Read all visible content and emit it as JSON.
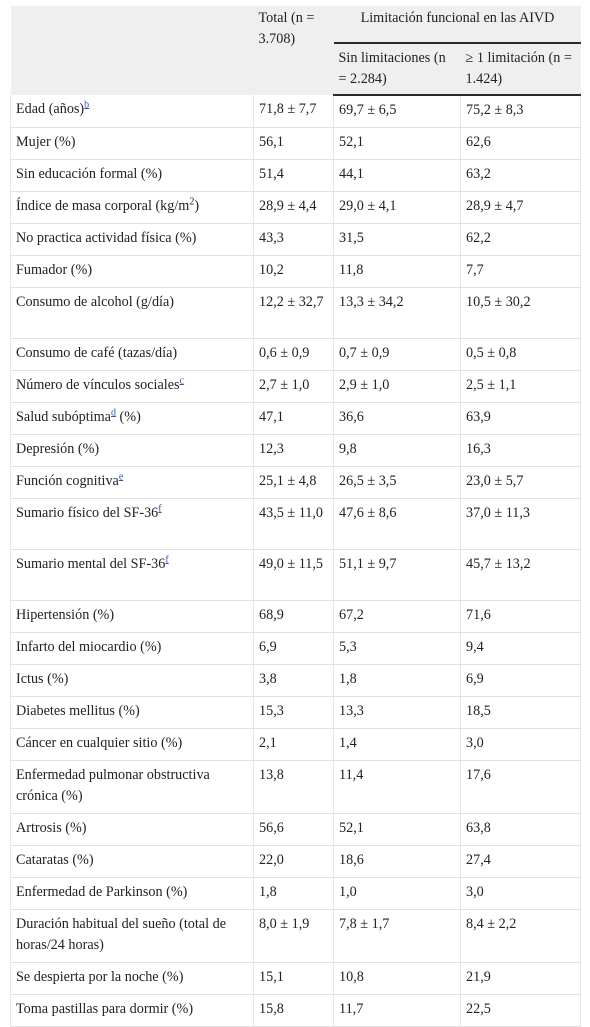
{
  "header": {
    "total": "Total (n = 3.708)",
    "group": "Limitación funcional en las AIVD",
    "col_none": "Sin limitaciones (n = 2.284)",
    "col_one": "≥ 1 limitación (n = 1.424)"
  },
  "rows": [
    {
      "label": "Edad (años)",
      "sup": "b",
      "suffix": "",
      "total": "71,8 ± 7,7",
      "none": "69,7 ± 6,5",
      "one": "75,2 ± 8,3"
    },
    {
      "label": "Mujer (%)",
      "sup": "",
      "suffix": "",
      "total": "56,1",
      "none": "52,1",
      "one": "62,6"
    },
    {
      "label": "Sin educación formal (%)",
      "sup": "",
      "suffix": "",
      "total": "51,4",
      "none": "44,1",
      "one": "63,2"
    },
    {
      "label": "Índice de masa corporal (kg/m",
      "sup2": "2",
      "suffix": ")",
      "total": "28,9 ± 4,4",
      "none": "29,0 ± 4,1",
      "one": "28,9 ± 4,7"
    },
    {
      "label": "No practica actividad física (%)",
      "sup": "",
      "suffix": "",
      "total": "43,3",
      "none": "31,5",
      "one": "62,2"
    },
    {
      "label": "Fumador (%)",
      "sup": "",
      "suffix": "",
      "total": "10,2",
      "none": "11,8",
      "one": "7,7"
    },
    {
      "label": "Consumo de alcohol (g/día)",
      "sup": "",
      "suffix": "",
      "total": "12,2 ± 32,7",
      "none": "13,3 ± 34,2",
      "one": "10,5 ± 30,2"
    },
    {
      "label": "Consumo de café (tazas/día)",
      "sup": "",
      "suffix": "",
      "total": "0,6 ± 0,9",
      "none": "0,7 ± 0,9",
      "one": "0,5 ± 0,8"
    },
    {
      "label": "Número de vínculos sociales",
      "sup": "c",
      "suffix": "",
      "total": "2,7 ± 1,0",
      "none": "2,9 ± 1,0",
      "one": "2,5 ± 1,1"
    },
    {
      "label": "Salud subóptima",
      "sup": "d",
      "suffix": " (%)",
      "total": "47,1",
      "none": "36,6",
      "one": "63,9"
    },
    {
      "label": "Depresión (%)",
      "sup": "",
      "suffix": "",
      "total": "12,3",
      "none": "9,8",
      "one": "16,3"
    },
    {
      "label": "Función cognitiva",
      "sup": "e",
      "suffix": "",
      "total": "25,1 ± 4,8",
      "none": "26,5 ± 3,5",
      "one": "23,0 ± 5,7"
    },
    {
      "label": "Sumario físico del SF-36",
      "sup": "f",
      "suffix": "",
      "total": "43,5 ± 11,0",
      "none": "47,6 ± 8,6",
      "one": "37,0 ± 11,3"
    },
    {
      "label": "Sumario mental del SF-36",
      "sup": "f",
      "suffix": "",
      "total": "49,0 ± 11,5",
      "none": "51,1 ± 9,7",
      "one": "45,7 ± 13,2"
    },
    {
      "label": "Hipertensión (%)",
      "sup": "",
      "suffix": "",
      "total": "68,9",
      "none": "67,2",
      "one": "71,6"
    },
    {
      "label": "Infarto del miocardio (%)",
      "sup": "",
      "suffix": "",
      "total": "6,9",
      "none": "5,3",
      "one": "9,4"
    },
    {
      "label": "Ictus (%)",
      "sup": "",
      "suffix": "",
      "total": "3,8",
      "none": "1,8",
      "one": "6,9"
    },
    {
      "label": "Diabetes mellitus (%)",
      "sup": "",
      "suffix": "",
      "total": "15,3",
      "none": "13,3",
      "one": "18,5"
    },
    {
      "label": "Cáncer en cualquier sitio (%)",
      "sup": "",
      "suffix": "",
      "total": "2,1",
      "none": "1,4",
      "one": "3,0"
    },
    {
      "label": "Enfermedad pulmonar obstructiva crónica (%)",
      "sup": "",
      "suffix": "",
      "total": "13,8",
      "none": "11,4",
      "one": "17,6"
    },
    {
      "label": "Artrosis (%)",
      "sup": "",
      "suffix": "",
      "total": "56,6",
      "none": "52,1",
      "one": "63,8"
    },
    {
      "label": "Cataratas (%)",
      "sup": "",
      "suffix": "",
      "total": "22,0",
      "none": "18,6",
      "one": "27,4"
    },
    {
      "label": "Enfermedad de Parkinson (%)",
      "sup": "",
      "suffix": "",
      "total": "1,8",
      "none": "1,0",
      "one": "3,0"
    },
    {
      "label": "Duración habitual del sueño (total de horas/24 horas)",
      "sup": "",
      "suffix": "",
      "total": "8,0 ± 1,9",
      "none": "7,8 ± 1,7",
      "one": "8,4 ± 2,2"
    },
    {
      "label": "Se despierta por la noche (%)",
      "sup": "",
      "suffix": "",
      "total": "15,1",
      "none": "10,8",
      "one": "21,9"
    },
    {
      "label": "Toma pastillas para dormir (%)",
      "sup": "",
      "suffix": "",
      "total": "15,8",
      "none": "11,7",
      "one": "22,5"
    }
  ]
}
